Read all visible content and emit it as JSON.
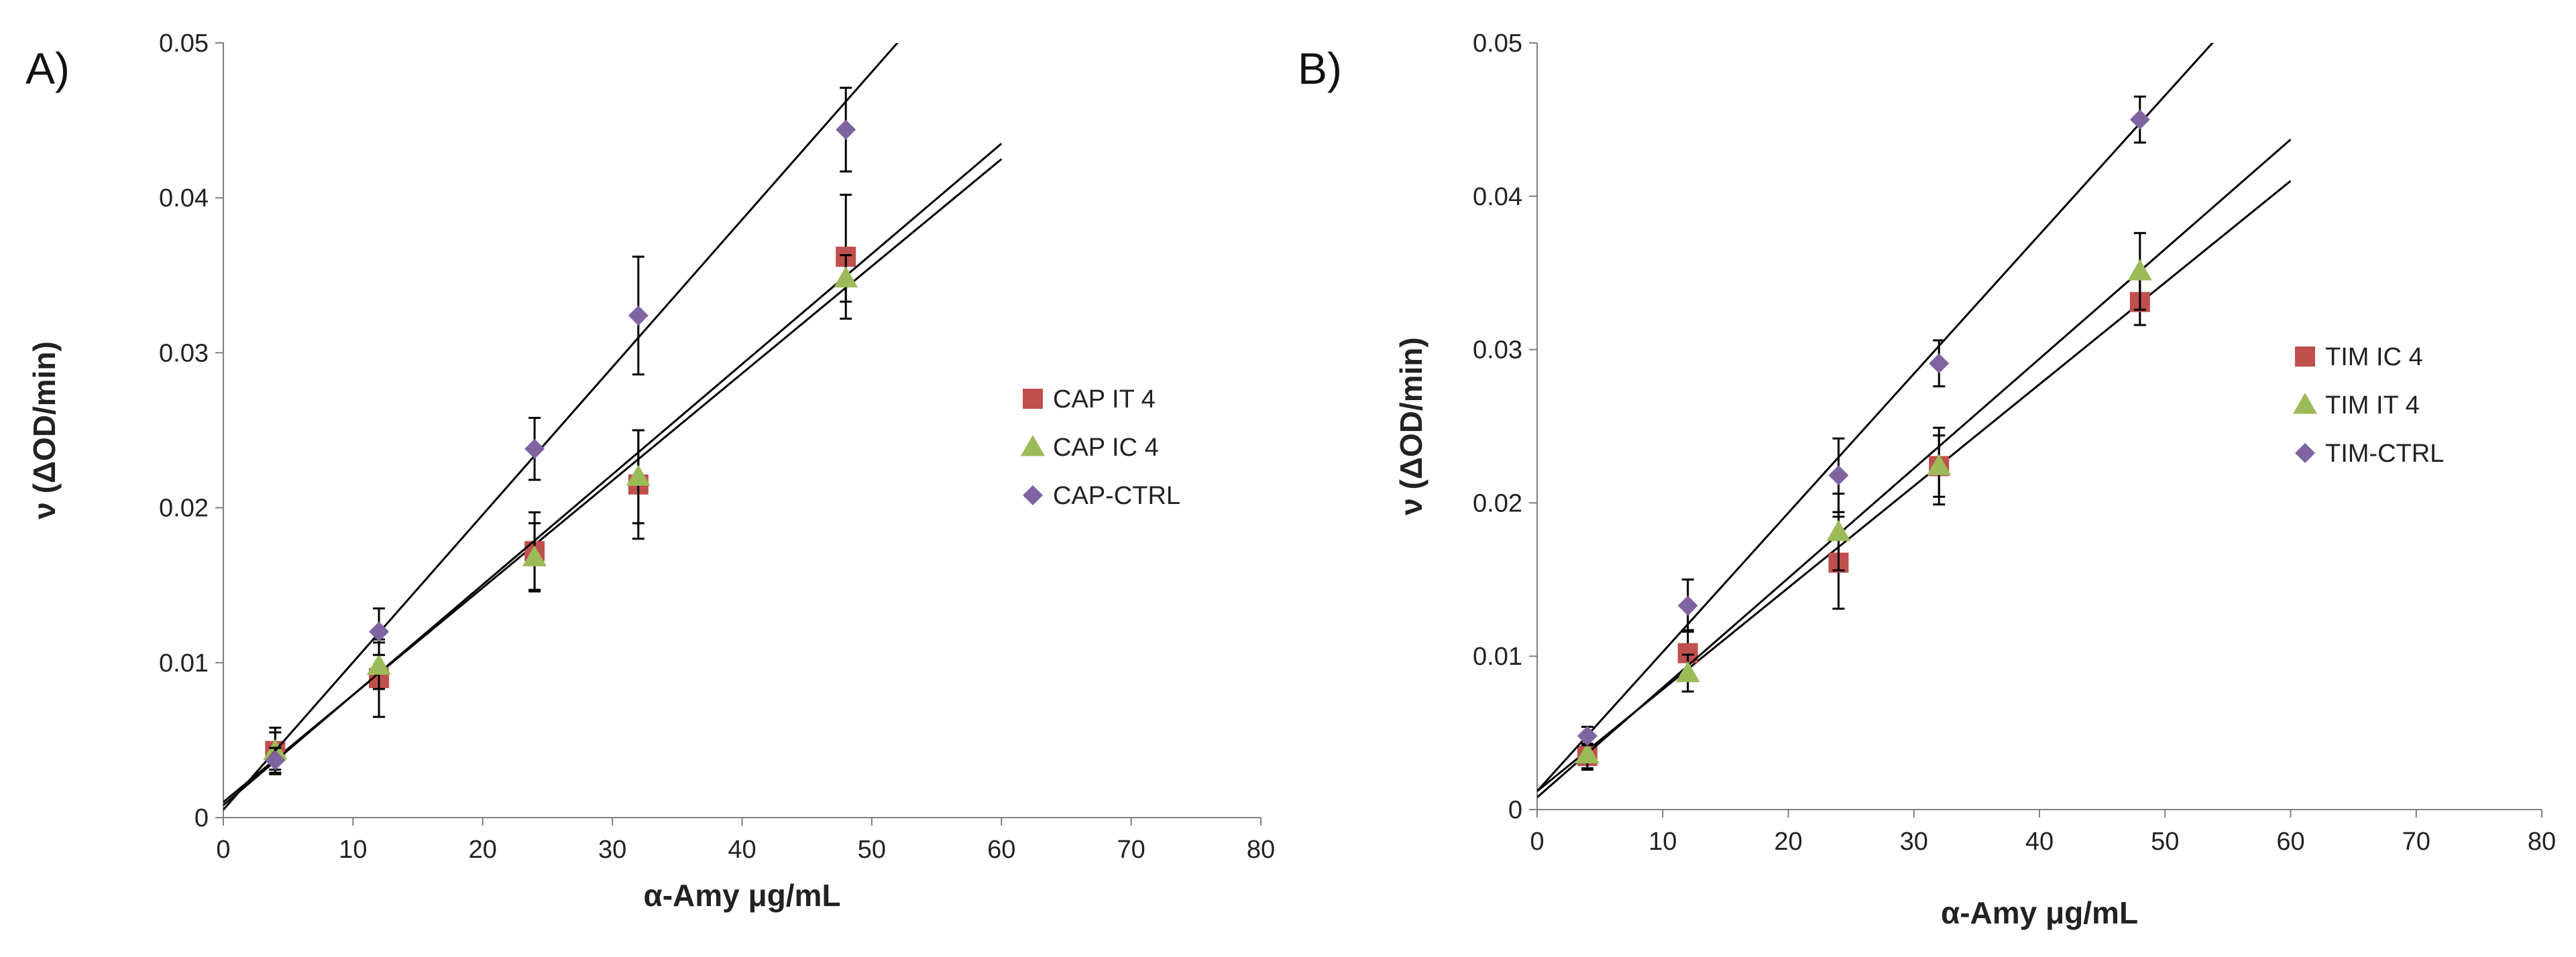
{
  "chart_data": [
    {
      "panel_label": "A)",
      "type": "scatter",
      "xlabel": "α-Amy μg/mL",
      "ylabel": "ν (ΔOD/min)",
      "xlim": [
        0,
        80
      ],
      "ylim": [
        0,
        0.05
      ],
      "x_ticks": [
        0,
        10,
        20,
        30,
        40,
        50,
        60,
        70,
        80
      ],
      "y_ticks": [
        0,
        0.01,
        0.02,
        0.03,
        0.04,
        0.05
      ],
      "x_tick_labels": [
        "0",
        "10",
        "20",
        "30",
        "40",
        "50",
        "60",
        "70",
        "80"
      ],
      "y_tick_labels": [
        "0",
        "0.01",
        "0.02",
        "0.03",
        "0.04",
        "0.05"
      ],
      "legend_position": "right",
      "series": [
        {
          "name": "CAP IT 4",
          "marker": "square",
          "color": "#c0504d",
          "x": [
            4,
            12,
            24,
            32,
            48
          ],
          "y": [
            0.0043,
            0.009,
            0.0172,
            0.0215,
            0.0362
          ],
          "err": [
            0.0015,
            0.0025,
            0.0025,
            0.0035,
            0.004
          ],
          "trend": {
            "x": [
              0,
              60
            ],
            "y": [
              0.001,
              0.0425
            ]
          }
        },
        {
          "name": "CAP IC 4",
          "marker": "triangle",
          "color": "#9bbb59",
          "x": [
            4,
            12,
            24,
            32,
            48
          ],
          "y": [
            0.0043,
            0.0098,
            0.0168,
            0.022,
            0.0348
          ],
          "err": [
            0.0012,
            0.0015,
            0.0022,
            0.003,
            0.0015
          ],
          "trend": {
            "x": [
              0,
              60
            ],
            "y": [
              0.0008,
              0.0435
            ]
          }
        },
        {
          "name": "CAP-CTRL",
          "marker": "diamond",
          "color": "#8064a2",
          "x": [
            4,
            12,
            24,
            32,
            48
          ],
          "y": [
            0.0037,
            0.012,
            0.0238,
            0.0324,
            0.0444
          ],
          "err": [
            0.0008,
            0.0015,
            0.002,
            0.0038,
            0.0027
          ],
          "trend": {
            "x": [
              0,
              52.5
            ],
            "y": [
              0.0005,
              0.0505
            ]
          }
        }
      ]
    },
    {
      "panel_label": "B)",
      "type": "scatter",
      "xlabel": "α-Amy μg/mL",
      "ylabel": "ν (ΔOD/min)",
      "xlim": [
        0,
        80
      ],
      "ylim": [
        0,
        0.05
      ],
      "x_ticks": [
        0,
        10,
        20,
        30,
        40,
        50,
        60,
        70,
        80
      ],
      "y_ticks": [
        0,
        0.01,
        0.02,
        0.03,
        0.04,
        0.05
      ],
      "x_tick_labels": [
        "0",
        "10",
        "20",
        "30",
        "40",
        "50",
        "60",
        "70",
        "80"
      ],
      "y_tick_labels": [
        "0",
        "0.01",
        "0.02",
        "0.03",
        "0.04",
        "0.05"
      ],
      "legend_position": "right",
      "series": [
        {
          "name": "TIM IC 4",
          "marker": "square",
          "color": "#c0504d",
          "x": [
            4,
            12,
            24,
            32,
            48
          ],
          "y": [
            0.0035,
            0.0102,
            0.0161,
            0.0224,
            0.0331
          ],
          "err": [
            0.0008,
            0.0015,
            0.003,
            0.0025,
            0.0015
          ],
          "trend": {
            "x": [
              0,
              60
            ],
            "y": [
              0.0012,
              0.041
            ]
          }
        },
        {
          "name": "TIM IT 4",
          "marker": "triangle",
          "color": "#9bbb59",
          "x": [
            4,
            12,
            24,
            32,
            48
          ],
          "y": [
            0.0036,
            0.0089,
            0.0181,
            0.0224,
            0.0351
          ],
          "err": [
            0.001,
            0.0012,
            0.0025,
            0.002,
            0.0025
          ],
          "trend": {
            "x": [
              0,
              60
            ],
            "y": [
              0.0008,
              0.0437
            ]
          }
        },
        {
          "name": "TIM-CTRL",
          "marker": "diamond",
          "color": "#8064a2",
          "x": [
            4,
            12,
            24,
            32,
            48
          ],
          "y": [
            0.0048,
            0.0133,
            0.0218,
            0.0291,
            0.045
          ],
          "err": [
            0.0006,
            0.0017,
            0.0024,
            0.0015,
            0.0015
          ],
          "trend": {
            "x": [
              0,
              54
            ],
            "y": [
              0.0012,
              0.0502
            ]
          }
        }
      ]
    }
  ]
}
